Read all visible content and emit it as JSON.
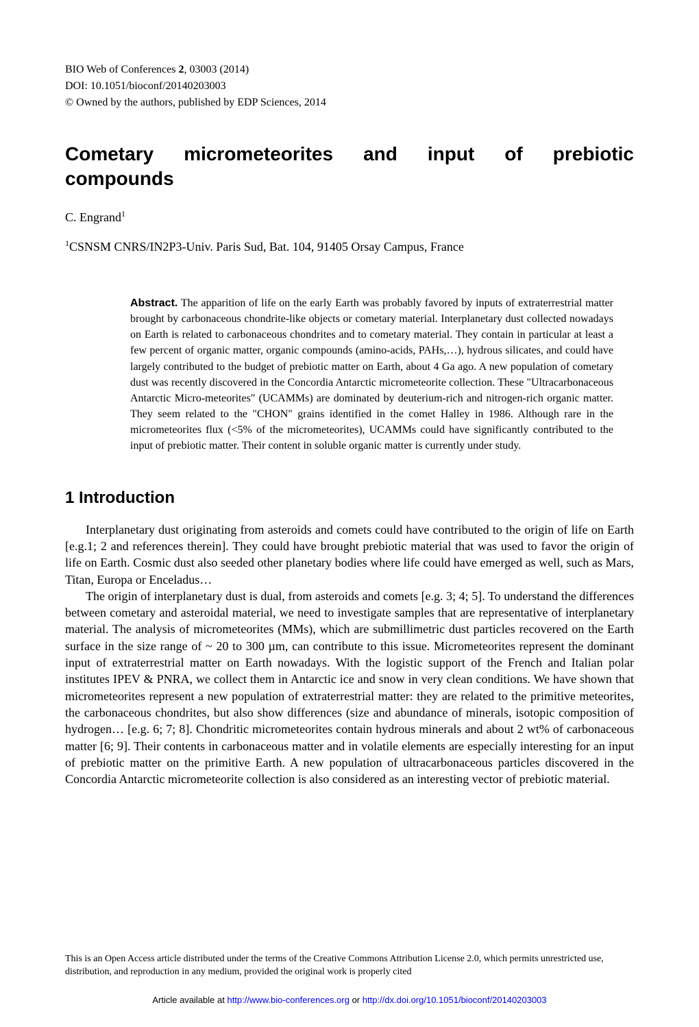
{
  "journal": {
    "name_prefix": "BIO Web of Conferences",
    "volume": "2",
    "article_num": ", 03003 (2014)",
    "doi_label": "DOI: 10.1051/bioconf/20140203003",
    "copyright": "© Owned by the authors, published by EDP Sciences, 2014"
  },
  "title": {
    "word1": "Cometary",
    "word2": "micrometeorites",
    "word3": "and",
    "word4": "input",
    "word5": "of",
    "word6": "prebiotic",
    "line2": "compounds"
  },
  "author": {
    "name": "C. Engrand",
    "sup": "1"
  },
  "affiliation": {
    "sup": "1",
    "text": "CSNSM CNRS/IN2P3-Univ. Paris Sud, Bat. 104, 91405 Orsay Campus, France"
  },
  "abstract": {
    "label": "Abstract.",
    "text": " The apparition of life on the early Earth was probably favored by inputs of extraterrestrial matter brought by carbonaceous chondrite-like objects or cometary material. Interplanetary dust collected nowadays on Earth is related to carbonaceous chondrites and to cometary material. They contain in particular at least a few percent of organic matter, organic compounds (amino-acids, PAHs,…), hydrous silicates, and could have largely contributed to the budget of prebiotic matter on Earth, about 4 Ga ago. A new population of cometary dust was recently discovered in the Concordia Antarctic micrometeorite collection. These \"Ultracarbonaceous Antarctic Micro-meteorites\" (UCAMMs) are dominated by deuterium-rich and nitrogen-rich organic matter. They seem related to the \"CHON\" grains identified in the comet Halley in 1986. Although rare in the micrometeorites flux (<5% of the micrometeorites), UCAMMs could have significantly contributed to the input of prebiotic matter. Their content in soluble organic matter is currently under study."
  },
  "section1": {
    "heading": "1 Introduction",
    "para1": "Interplanetary dust originating from asteroids and comets could have contributed to the origin of life on Earth [e.g.1; 2 and references therein]. They could have brought prebiotic material that was used to favor the origin of life on Earth. Cosmic dust also seeded other planetary bodies where life could have emerged as well, such as Mars, Titan, Europa or Enceladus…",
    "para2": "The origin of interplanetary dust is dual, from asteroids and comets [e.g. 3; 4; 5]. To understand the differences between cometary and asteroidal material, we need to investigate samples that are representative of interplanetary material. The analysis of micrometeorites (MMs), which are submillimetric dust particles recovered on the Earth surface in the size range of ~ 20 to 300 µm, can contribute to this issue. Micrometeorites represent the dominant input of extraterrestrial matter on Earth nowadays. With the logistic support of the French and Italian polar institutes IPEV & PNRA, we collect them in Antarctic ice and snow in very clean conditions. We have shown that micrometeorites represent a new population of extraterrestrial matter: they are related to the primitive meteorites, the carbonaceous chondrites, but also show differences (size and abundance of minerals, isotopic composition of hydrogen… [e.g. 6; 7; 8]. Chondritic micrometeorites contain hydrous minerals and about 2 wt% of carbonaceous matter [6; 9]. Their contents in carbonaceous matter and in volatile elements are especially interesting for an input of prebiotic matter on the primitive Earth. A new population of ultracarbonaceous particles discovered in the Concordia Antarctic micrometeorite collection is also considered as an interesting vector of prebiotic material."
  },
  "footer": {
    "license": "This is an Open Access article distributed under the terms of the Creative Commons Attribution License 2.0, which permits unrestricted use, distribution, and reproduction in any medium, provided the original work is properly cited",
    "article_prefix": "Article available at ",
    "url1": "http://www.bio-conferences.org",
    "or_text": " or ",
    "url2": "http://dx.doi.org/10.1051/bioconf/20140203003"
  }
}
